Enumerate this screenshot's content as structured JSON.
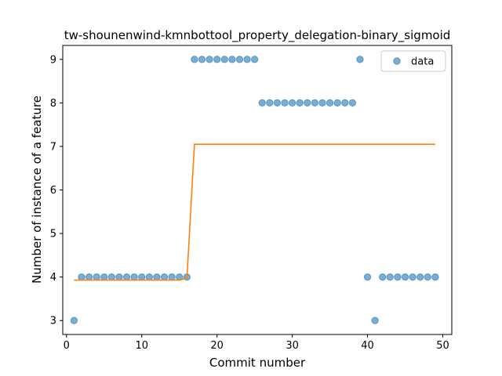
{
  "chart_data": {
    "type": "scatter",
    "title": "tw-shounenwind-kmnbottool_property_delegation-binary_sigmoid",
    "xlabel": "Commit number",
    "ylabel": "Number of instance of a feature",
    "xlim": [
      -0.5,
      51.2
    ],
    "ylim": [
      2.68,
      9.32
    ],
    "xticks": [
      0,
      10,
      20,
      30,
      40,
      50
    ],
    "yticks": [
      3,
      4,
      5,
      6,
      7,
      8,
      9
    ],
    "legend": {
      "position": "top-right",
      "entries": [
        "data"
      ]
    },
    "series": [
      {
        "name": "data",
        "kind": "scatter",
        "color": "#1f77b4",
        "x": [
          1,
          2,
          3,
          4,
          5,
          6,
          7,
          8,
          9,
          10,
          11,
          12,
          13,
          14,
          15,
          16,
          17,
          18,
          19,
          20,
          21,
          22,
          23,
          24,
          25,
          26,
          27,
          28,
          29,
          30,
          31,
          32,
          33,
          34,
          35,
          36,
          37,
          38,
          39,
          40,
          41,
          42,
          43,
          44,
          45,
          46,
          47,
          48,
          49
        ],
        "y": [
          3,
          4,
          4,
          4,
          4,
          4,
          4,
          4,
          4,
          4,
          4,
          4,
          4,
          4,
          4,
          4,
          9,
          9,
          9,
          9,
          9,
          9,
          9,
          9,
          9,
          8,
          8,
          8,
          8,
          8,
          8,
          8,
          8,
          8,
          8,
          8,
          8,
          8,
          9,
          4,
          3,
          4,
          4,
          4,
          4,
          4,
          4,
          4,
          4
        ]
      },
      {
        "kind": "line",
        "color": "#ff7f0e",
        "x": [
          1,
          15,
          16,
          16.5,
          17,
          49
        ],
        "y": [
          3.93,
          3.93,
          3.97,
          5.5,
          7.05,
          7.05
        ]
      }
    ]
  }
}
